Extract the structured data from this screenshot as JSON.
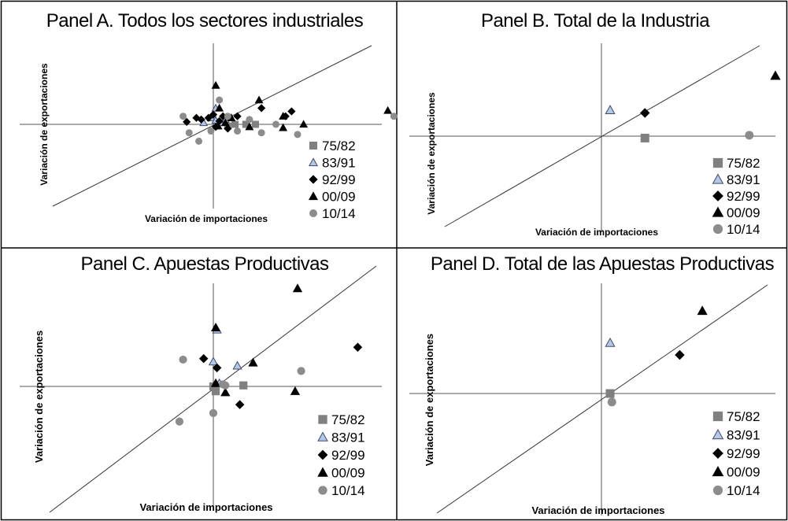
{
  "series_styles": [
    {
      "name": "75/82",
      "shape": "square",
      "fill": "#808080",
      "stroke": "#808080"
    },
    {
      "name": "83/91",
      "shape": "triangle",
      "fill": "#b4c7e7",
      "stroke": "#404a6a"
    },
    {
      "name": "92/99",
      "shape": "diamond",
      "fill": "#000000",
      "stroke": "#000000"
    },
    {
      "name": "00/09",
      "shape": "triangle",
      "fill": "#000000",
      "stroke": "#000000"
    },
    {
      "name": "10/14",
      "shape": "circle",
      "fill": "#8c8c8c",
      "stroke": "#8c8c8c"
    }
  ],
  "chart_data": [
    {
      "type": "scatter",
      "title": "Panel A. Todos los sectores industriales",
      "xlabel": "Variación de importaciones",
      "ylabel": "Variación de exportaciones",
      "xlim": [
        -1.6,
        1.4
      ],
      "ylim": [
        -1.0,
        1.0
      ],
      "reference_line": "45-degree",
      "legend_position": "bottom-right",
      "series": [
        {
          "name": "75/82",
          "points": [
            [
              0.18,
              0
            ],
            [
              0.27,
              0
            ],
            [
              0.35,
              0
            ],
            [
              0.12,
              -0.02
            ]
          ]
        },
        {
          "name": "83/91",
          "points": [
            [
              -0.08,
              0.02
            ],
            [
              -0.02,
              0.08
            ],
            [
              0.02,
              0.05
            ],
            [
              0.06,
              0.02
            ],
            [
              0.02,
              0.2
            ],
            [
              0.1,
              0.06
            ]
          ]
        },
        {
          "name": "92/99",
          "points": [
            [
              -0.22,
              0.03
            ],
            [
              -0.14,
              0.08
            ],
            [
              -0.1,
              0.06
            ],
            [
              -0.04,
              0.08
            ],
            [
              0,
              0.12
            ],
            [
              0.05,
              0.04
            ],
            [
              0.08,
              0.1
            ],
            [
              0.12,
              -0.05
            ],
            [
              0.2,
              0.1
            ],
            [
              0.65,
              0.16
            ],
            [
              0.6,
              0.1
            ],
            [
              0.4,
              0.2
            ],
            [
              0.02,
              -0.03
            ]
          ]
        },
        {
          "name": "00/09",
          "points": [
            [
              0.02,
              0.48
            ],
            [
              0.05,
              0.2
            ],
            [
              0.04,
              -0.02
            ],
            [
              0.1,
              0.02
            ],
            [
              0.15,
              0.08
            ],
            [
              0.58,
              0.1
            ],
            [
              0.75,
              0
            ],
            [
              1.45,
              0.17
            ],
            [
              0.58,
              -0.04
            ],
            [
              0.3,
              -0.03
            ],
            [
              0.38,
              0.3
            ]
          ]
        },
        {
          "name": "10/14",
          "points": [
            [
              -0.25,
              0.1
            ],
            [
              -0.2,
              -0.1
            ],
            [
              -0.12,
              -0.2
            ],
            [
              0.05,
              0.3
            ],
            [
              0.12,
              0.1
            ],
            [
              0.2,
              -0.08
            ],
            [
              0.3,
              0.06
            ],
            [
              0.52,
              0
            ],
            [
              0.7,
              -0.12
            ],
            [
              1.5,
              0.1
            ],
            [
              -0.02,
              -0.08
            ],
            [
              0.4,
              -0.1
            ]
          ]
        }
      ]
    },
    {
      "type": "scatter",
      "title": "Panel B. Total de la Industria",
      "xlabel": "Variación de importaciones",
      "ylabel": "Variación de exportaciones",
      "xlim": [
        -1.0,
        1.0
      ],
      "ylim": [
        -1.0,
        1.0
      ],
      "reference_line": "45-degree",
      "legend_position": "bottom-right",
      "series": [
        {
          "name": "75/82",
          "points": [
            [
              0.25,
              -0.02
            ]
          ]
        },
        {
          "name": "83/91",
          "points": [
            [
              0.05,
              0.28
            ]
          ]
        },
        {
          "name": "92/99",
          "points": [
            [
              0.25,
              0.25
            ]
          ]
        },
        {
          "name": "00/09",
          "points": [
            [
              1.0,
              0.65
            ]
          ]
        },
        {
          "name": "10/14",
          "points": [
            [
              0.85,
              0.01
            ]
          ]
        }
      ]
    },
    {
      "type": "scatter",
      "title": "Panel C. Apuestas Productivas",
      "xlabel": "Variación de importaciones",
      "ylabel": "Variación de exportaciones",
      "xlim": [
        -1.6,
        1.4
      ],
      "ylim": [
        -1.0,
        1.0
      ],
      "reference_line": "45-degree",
      "legend_position": "bottom-right",
      "series": [
        {
          "name": "75/82",
          "points": [
            [
              0.0,
              0.0
            ],
            [
              0.02,
              -0.04
            ],
            [
              0.25,
              0.01
            ]
          ]
        },
        {
          "name": "83/91",
          "points": [
            [
              0.03,
              0.55
            ],
            [
              0.0,
              0.24
            ],
            [
              0.2,
              0.2
            ],
            [
              0.05,
              0.03
            ]
          ]
        },
        {
          "name": "92/99",
          "points": [
            [
              -0.08,
              0.27
            ],
            [
              0.03,
              0.18
            ],
            [
              0.22,
              -0.15
            ],
            [
              1.2,
              0.38
            ]
          ]
        },
        {
          "name": "00/09",
          "points": [
            [
              0.02,
              0.57
            ],
            [
              0.7,
              0.95
            ],
            [
              0.33,
              0.23
            ],
            [
              0.1,
              -0.05
            ],
            [
              0.68,
              -0.04
            ],
            [
              0.02,
              0.03
            ]
          ]
        },
        {
          "name": "10/14",
          "points": [
            [
              -0.25,
              0.26
            ],
            [
              -0.28,
              -0.29
            ],
            [
              0.0,
              -0.22
            ],
            [
              0.08,
              0.02
            ],
            [
              0.73,
              0.15
            ],
            [
              0.1,
              0.01
            ]
          ]
        }
      ]
    },
    {
      "type": "scatter",
      "title": "Panel D. Total de las Apuestas Productivas",
      "xlabel": "Variación de importaciones",
      "ylabel": "Variación de exportaciones",
      "xlim": [
        -1.0,
        1.0
      ],
      "ylim": [
        -1.0,
        1.0
      ],
      "reference_line": "45-degree",
      "legend_position": "bottom-right",
      "series": [
        {
          "name": "75/82",
          "points": [
            [
              0.05,
              0.0
            ]
          ]
        },
        {
          "name": "83/91",
          "points": [
            [
              0.05,
              0.46
            ]
          ]
        },
        {
          "name": "92/99",
          "points": [
            [
              0.45,
              0.35
            ]
          ]
        },
        {
          "name": "00/09",
          "points": [
            [
              0.58,
              0.75
            ]
          ]
        },
        {
          "name": "10/14",
          "points": [
            [
              0.06,
              -0.07
            ]
          ]
        }
      ]
    }
  ]
}
